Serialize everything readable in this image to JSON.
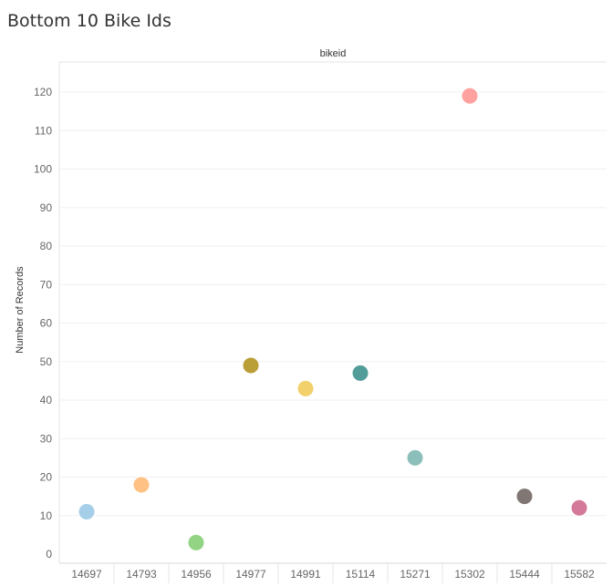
{
  "title": "Bottom 10 Bike Ids",
  "chart_data": {
    "type": "scatter",
    "column_header": "bikeid",
    "ylabel": "Number of Records",
    "categories": [
      "14697",
      "14793",
      "14956",
      "14977",
      "14991",
      "15114",
      "15271",
      "15302",
      "15444",
      "15582"
    ],
    "values": [
      11,
      18,
      3,
      49,
      43,
      47,
      25,
      119,
      15,
      12
    ],
    "colors": [
      "#a0cbe8",
      "#ffbe7d",
      "#8cd17d",
      "#b6992d",
      "#f1ce63",
      "#499894",
      "#86bcb6",
      "#ff9d9a",
      "#79706e",
      "#d37295"
    ],
    "ylim": [
      0,
      120
    ],
    "yticks": [
      0,
      10,
      20,
      30,
      40,
      50,
      60,
      70,
      80,
      90,
      100,
      110,
      120
    ],
    "grid": true,
    "legend": "none"
  }
}
